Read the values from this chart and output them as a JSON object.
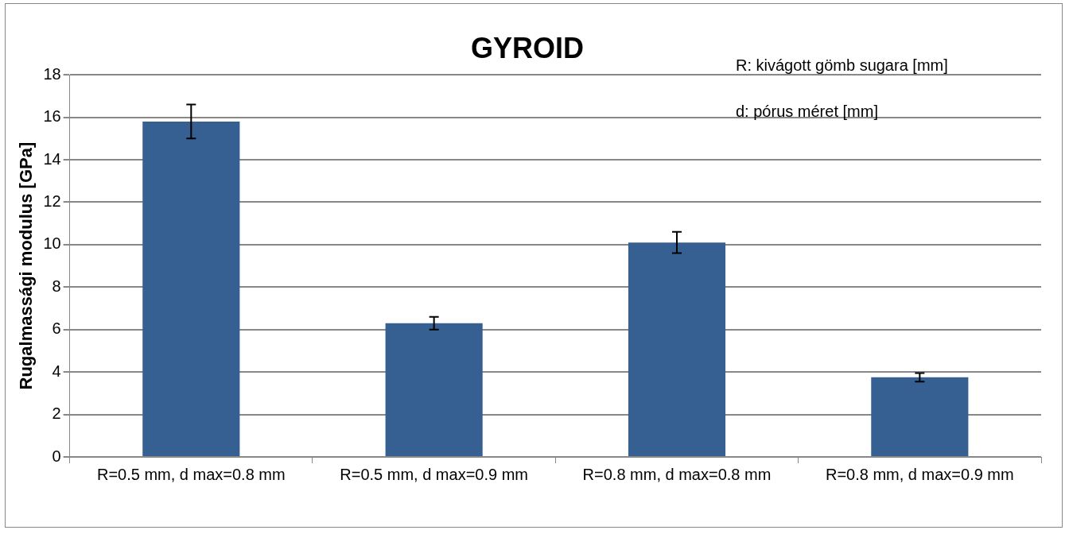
{
  "chart_data": {
    "type": "bar",
    "title": "GYROID",
    "ylabel": "Rugalmassági modulus [GPa]",
    "categories": [
      "R=0.5 mm, d max=0.8 mm",
      "R=0.5 mm, d max=0.9 mm",
      "R=0.8 mm, d max=0.8 mm",
      "R=0.8 mm, d max=0.9 mm"
    ],
    "values": [
      15.8,
      6.3,
      10.1,
      3.75
    ],
    "errors": [
      0.8,
      0.3,
      0.5,
      0.2
    ],
    "color": "#366092",
    "ylim": [
      0,
      18
    ],
    "yticks": [
      0,
      2,
      4,
      6,
      8,
      10,
      12,
      14,
      16,
      18
    ],
    "grid": "y",
    "legend": false,
    "annotations": [
      "R: kivágott gömb sugara [mm]",
      "d: pórus méret [mm]"
    ]
  }
}
